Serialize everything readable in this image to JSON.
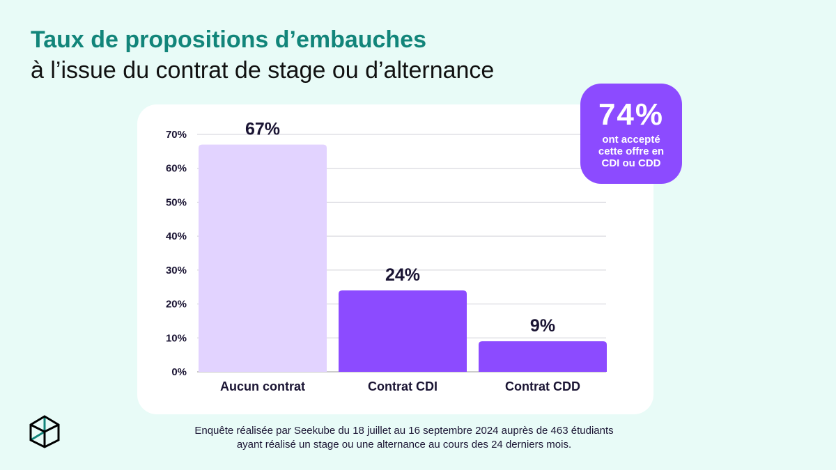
{
  "title": "Taux de propositions d’embauches",
  "subtitle": "à l’issue du contrat de stage ou d’alternance",
  "badge": {
    "value": "74%",
    "text": "ont accepté cette offre en CDI ou CDD",
    "color": "#8c4bff"
  },
  "footnote": [
    "Enquête réalisée par Seekube du 18 juillet au 16 septembre 2024 auprès de 463 étudiants",
    "ayant réalisé un stage ou une alternance au cours des 24 derniers mois."
  ],
  "chart_data": {
    "type": "bar",
    "categories": [
      "Aucun contrat",
      "Contrat CDI",
      "Contrat CDD"
    ],
    "values": [
      67,
      24,
      9
    ],
    "data_labels": [
      "67%",
      "24%",
      "9%"
    ],
    "colors": [
      "#e2d3ff",
      "#8c4bff",
      "#8c4bff"
    ],
    "ylim": [
      0,
      70
    ],
    "yticks": [
      0,
      10,
      20,
      30,
      40,
      50,
      60,
      70
    ],
    "ytick_labels": [
      "0%",
      "10%",
      "20%",
      "30%",
      "40%",
      "50%",
      "60%",
      "70%"
    ],
    "grid": true
  }
}
